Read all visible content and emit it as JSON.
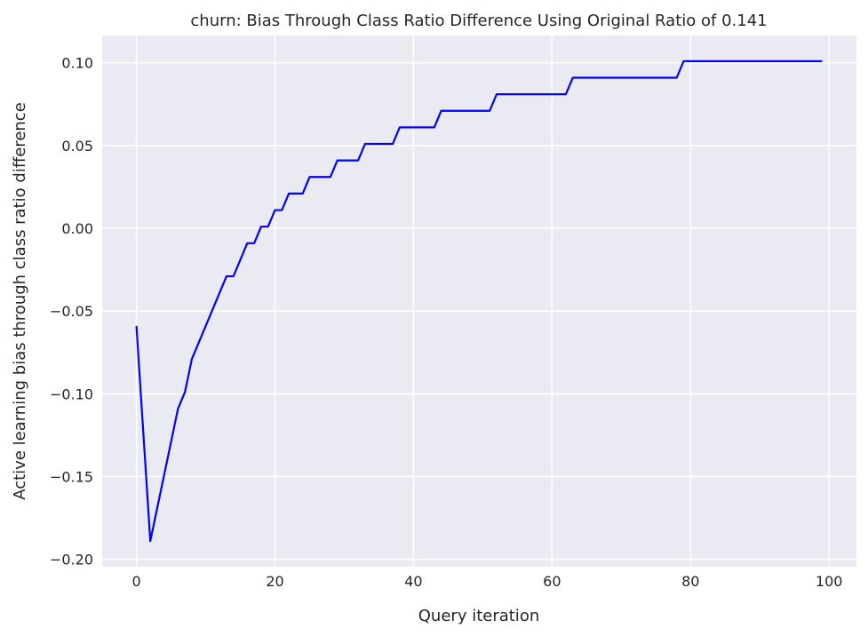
{
  "chart_data": {
    "type": "line",
    "title": "churn: Bias Through Class Ratio Difference Using Original Ratio of 0.141",
    "xlabel": "Query iteration",
    "ylabel": "Active learning bias through class ratio difference",
    "xlim": [
      -4.95,
      103.95
    ],
    "ylim": [
      -0.2045,
      0.1165
    ],
    "xticks": [
      0,
      20,
      40,
      60,
      80,
      100
    ],
    "xtick_labels": [
      "0",
      "20",
      "40",
      "60",
      "80",
      "100"
    ],
    "yticks": [
      -0.2,
      -0.15,
      -0.1,
      -0.05,
      0.0,
      0.05,
      0.1
    ],
    "ytick_labels": [
      "−0.20",
      "−0.15",
      "−0.10",
      "−0.05",
      "0.00",
      "0.05",
      "0.10"
    ],
    "grid": true,
    "line_color": "#0000ff",
    "background_color": "#eaeaf2",
    "series": [
      {
        "x": [
          0,
          2,
          6,
          7,
          8,
          13,
          14,
          16,
          17,
          18,
          19,
          20,
          21,
          22,
          24,
          25,
          28,
          29,
          32,
          33,
          37,
          38,
          43,
          44,
          51,
          52,
          62,
          63,
          78,
          79,
          99
        ],
        "values": [
          -0.059,
          -0.189,
          -0.109,
          -0.099,
          -0.079,
          -0.029,
          -0.029,
          -0.009,
          -0.009,
          0.001,
          0.001,
          0.011,
          0.011,
          0.021,
          0.021,
          0.031,
          0.031,
          0.041,
          0.041,
          0.051,
          0.051,
          0.061,
          0.061,
          0.071,
          0.071,
          0.081,
          0.081,
          0.091,
          0.091,
          0.101,
          0.101
        ]
      }
    ]
  }
}
